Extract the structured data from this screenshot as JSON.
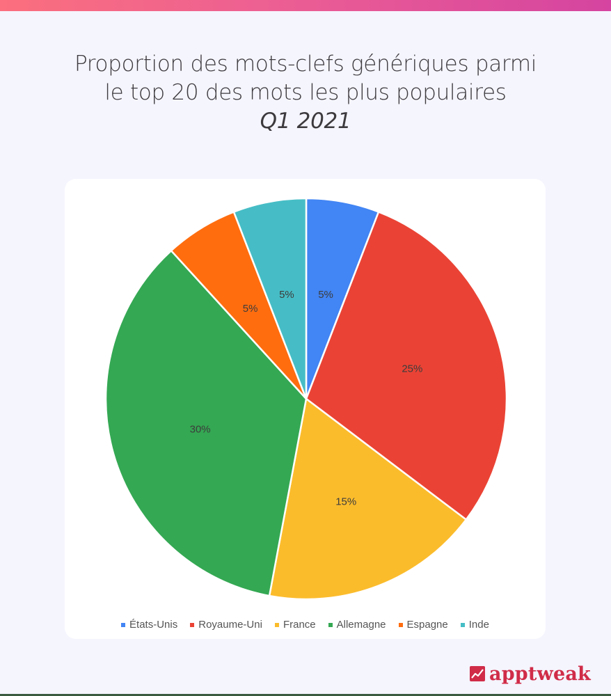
{
  "header": {
    "title_line1": "Proportion des mots-clefs génériques parmi",
    "title_line2": "le top 20 des mots les plus populaires",
    "subtitle": "Q1 2021"
  },
  "brand": {
    "name": "apptweak",
    "color": "#d02c48",
    "icon": "trend-chart-icon"
  },
  "chart_data": {
    "type": "pie",
    "title": "Proportion des mots-clefs génériques parmi le top 20 des mots les plus populaires Q1 2021",
    "categories": [
      "États-Unis",
      "Royaume-Uni",
      "France",
      "Allemagne",
      "Espagne",
      "Inde"
    ],
    "values": [
      5,
      25,
      15,
      30,
      5,
      5
    ],
    "labels": [
      "5%",
      "25%",
      "15%",
      "30%",
      "5%",
      "5%"
    ],
    "colors": [
      "#4285f4",
      "#ea4335",
      "#fbbc2c",
      "#34a853",
      "#ff6d0f",
      "#46bdc6"
    ],
    "start_angle": "top, clockwise",
    "legend_position": "bottom"
  }
}
